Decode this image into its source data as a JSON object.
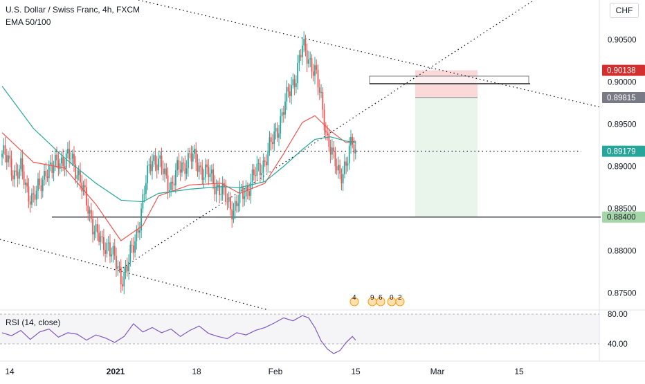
{
  "header": {
    "title": "U.S. Dollar / Swiss Franc, 4h, FXCM",
    "indicator": "EMA 50/100",
    "currency": "CHF"
  },
  "rsi": {
    "label": "RSI (14, close)",
    "ticks": [
      "80.00",
      "40.00"
    ]
  },
  "events": [
    "4",
    "9",
    "6",
    "0",
    "2"
  ],
  "chart_data": {
    "type": "candlestick",
    "symbol": "USDCHF",
    "timeframe": "4h",
    "ylim": [
      0.873,
      0.9097
    ],
    "y_ticks": [
      0.905,
      0.9,
      0.895,
      0.89,
      0.885,
      0.88,
      0.875
    ],
    "y_tick_labels": [
      "0.90500",
      "0.90000",
      "0.89500",
      "0.89000",
      "0.88500",
      "0.88000",
      "0.87500"
    ],
    "x_ticks": [
      "14",
      "2021",
      "18",
      "Feb",
      "15",
      "Mar",
      "15"
    ],
    "price_labels": [
      {
        "text": "0.90138",
        "value": 0.90138,
        "color": "#d32f2f"
      },
      {
        "text": "0.89815",
        "value": 0.89815,
        "color": "#787b86"
      },
      {
        "text": "0.89179",
        "value": 0.89179,
        "color": "#26a69a"
      },
      {
        "text": "0.88400",
        "value": 0.884,
        "color": "#a5d6a7"
      }
    ],
    "levels": {
      "current": 0.89179,
      "entry": 0.89815,
      "stop": 0.90138,
      "target": 0.884,
      "resistance": 0.8918
    },
    "series": [
      {
        "name": "USD/CHF",
        "points": [
          [
            0,
            0.8915
          ],
          [
            4,
            0.8905
          ],
          [
            8,
            0.8893
          ],
          [
            12,
            0.8895
          ],
          [
            16,
            0.8872
          ],
          [
            20,
            0.8862
          ],
          [
            24,
            0.8874
          ],
          [
            28,
            0.8898
          ],
          [
            32,
            0.8894
          ],
          [
            36,
            0.891
          ],
          [
            40,
            0.8905
          ],
          [
            44,
            0.8911
          ],
          [
            48,
            0.8896
          ],
          [
            52,
            0.8868
          ],
          [
            56,
            0.8845
          ],
          [
            60,
            0.8822
          ],
          [
            64,
            0.8805
          ],
          [
            68,
            0.881
          ],
          [
            72,
            0.8787
          ],
          [
            76,
            0.8768
          ],
          [
            80,
            0.8782
          ],
          [
            84,
            0.8804
          ],
          [
            88,
            0.8838
          ],
          [
            92,
            0.888
          ],
          [
            96,
            0.8912
          ],
          [
            100,
            0.8905
          ],
          [
            104,
            0.8888
          ],
          [
            108,
            0.8878
          ],
          [
            112,
            0.8893
          ],
          [
            116,
            0.8902
          ],
          [
            120,
            0.8912
          ],
          [
            124,
            0.8905
          ],
          [
            128,
            0.8896
          ],
          [
            132,
            0.889
          ],
          [
            136,
            0.888
          ],
          [
            140,
            0.8872
          ],
          [
            144,
            0.8858
          ],
          [
            148,
            0.885
          ],
          [
            152,
            0.8862
          ],
          [
            156,
            0.8872
          ],
          [
            160,
            0.8886
          ],
          [
            164,
            0.8895
          ],
          [
            168,
            0.8908
          ],
          [
            172,
            0.8925
          ],
          [
            176,
            0.8945
          ],
          [
            180,
            0.8968
          ],
          [
            184,
            0.899
          ],
          [
            188,
            0.901
          ],
          [
            192,
            0.904
          ],
          [
            196,
            0.903
          ],
          [
            200,
            0.9012
          ],
          [
            204,
            0.8978
          ],
          [
            208,
            0.8935
          ],
          [
            212,
            0.8905
          ],
          [
            216,
            0.8893
          ],
          [
            220,
            0.89
          ],
          [
            224,
            0.893
          ],
          [
            226,
            0.8918
          ]
        ]
      },
      {
        "name": "EMA 50",
        "points": [
          [
            0,
            0.894
          ],
          [
            20,
            0.8905
          ],
          [
            40,
            0.8898
          ],
          [
            60,
            0.8855
          ],
          [
            76,
            0.8812
          ],
          [
            90,
            0.883
          ],
          [
            100,
            0.8865
          ],
          [
            120,
            0.8878
          ],
          [
            140,
            0.888
          ],
          [
            152,
            0.8868
          ],
          [
            168,
            0.888
          ],
          [
            180,
            0.8915
          ],
          [
            192,
            0.8952
          ],
          [
            200,
            0.896
          ],
          [
            210,
            0.8942
          ],
          [
            220,
            0.8928
          ],
          [
            226,
            0.893
          ]
        ]
      },
      {
        "name": "EMA 100",
        "points": [
          [
            0,
            0.8995
          ],
          [
            20,
            0.8945
          ],
          [
            40,
            0.891
          ],
          [
            60,
            0.888
          ],
          [
            76,
            0.886
          ],
          [
            90,
            0.8858
          ],
          [
            100,
            0.8868
          ],
          [
            120,
            0.8873
          ],
          [
            140,
            0.8876
          ],
          [
            152,
            0.8875
          ],
          [
            168,
            0.8882
          ],
          [
            180,
            0.89
          ],
          [
            192,
            0.892
          ],
          [
            200,
            0.8932
          ],
          [
            210,
            0.8935
          ],
          [
            220,
            0.893
          ],
          [
            226,
            0.8928
          ]
        ]
      },
      {
        "name": "RSI",
        "points": [
          [
            0,
            55
          ],
          [
            6,
            51
          ],
          [
            12,
            58
          ],
          [
            18,
            46
          ],
          [
            24,
            56
          ],
          [
            30,
            60
          ],
          [
            36,
            49
          ],
          [
            42,
            55
          ],
          [
            48,
            53
          ],
          [
            54,
            45
          ],
          [
            60,
            52
          ],
          [
            66,
            48
          ],
          [
            72,
            42
          ],
          [
            78,
            50
          ],
          [
            84,
            67
          ],
          [
            90,
            56
          ],
          [
            96,
            62
          ],
          [
            102,
            55
          ],
          [
            108,
            60
          ],
          [
            114,
            50
          ],
          [
            120,
            58
          ],
          [
            126,
            64
          ],
          [
            132,
            54
          ],
          [
            138,
            50
          ],
          [
            144,
            47
          ],
          [
            150,
            55
          ],
          [
            156,
            52
          ],
          [
            162,
            58
          ],
          [
            168,
            62
          ],
          [
            174,
            68
          ],
          [
            180,
            75
          ],
          [
            186,
            71
          ],
          [
            192,
            78
          ],
          [
            196,
            75
          ],
          [
            200,
            62
          ],
          [
            204,
            44
          ],
          [
            208,
            33
          ],
          [
            212,
            27
          ],
          [
            216,
            31
          ],
          [
            220,
            42
          ],
          [
            224,
            50
          ],
          [
            226,
            45
          ]
        ]
      }
    ],
    "annotations": {
      "trendlines": [
        "descending top",
        "descending bottom",
        "rising support",
        "horizontal resistance"
      ],
      "short_position": {
        "entry": 0.89815,
        "stop": 0.90138,
        "target": 0.884
      }
    }
  }
}
